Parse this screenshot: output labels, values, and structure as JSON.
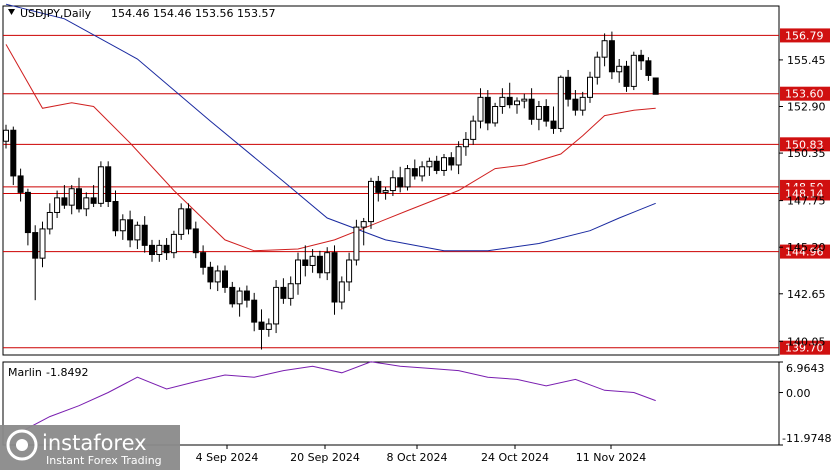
{
  "header": {
    "symbol": "USDJPY,Daily",
    "ohlc": "154.46 154.46 153.56 153.57"
  },
  "indicator": {
    "name": "Marlin",
    "value": "-1.8492",
    "scale_top": "6.9643",
    "scale_mid": "0.00",
    "scale_bottom": "-11.9748"
  },
  "brand": {
    "name": "instaforex",
    "tagline": "Instant Forex Trading"
  },
  "colors": {
    "candle_up": "#ffffff",
    "candle_down": "#000000",
    "level_line": "#cc0000",
    "level_tag": "#d01010",
    "ma_short": "#d02020",
    "ma_long": "#1a2aa0",
    "oscillator": "#7a1fb0",
    "logo_bg": "#8a8a8a"
  },
  "chart_data": {
    "type": "candlestick",
    "ylim": [
      139.3,
      158.4
    ],
    "x_tick_labels": [
      "4 Sep 2024",
      "20 Sep 2024",
      "8 Oct 2024",
      "24 Oct 2024",
      "11 Nov 2024"
    ],
    "y_tick_labels": [
      "155.45",
      "152.90",
      "150.35",
      "147.75",
      "145.20",
      "142.65",
      "140.05"
    ],
    "levels": [
      "156.79",
      "153.60",
      "150.83",
      "148.50",
      "148.14",
      "144.96",
      "139.70"
    ],
    "candles": [
      [
        151.0,
        151.9,
        150.6,
        151.6
      ],
      [
        151.6,
        151.8,
        148.6,
        149.1
      ],
      [
        149.1,
        149.5,
        147.7,
        148.2
      ],
      [
        148.2,
        148.4,
        145.3,
        146.0
      ],
      [
        146.0,
        146.4,
        142.3,
        144.6
      ],
      [
        144.6,
        146.6,
        144.1,
        146.2
      ],
      [
        146.2,
        147.6,
        145.9,
        147.1
      ],
      [
        147.1,
        148.3,
        146.8,
        147.9
      ],
      [
        147.9,
        148.6,
        147.3,
        147.5
      ],
      [
        147.5,
        148.6,
        147.0,
        148.4
      ],
      [
        148.4,
        149.0,
        147.1,
        147.3
      ],
      [
        147.3,
        148.2,
        146.9,
        147.9
      ],
      [
        147.9,
        148.6,
        147.4,
        147.6
      ],
      [
        147.6,
        149.9,
        147.4,
        149.6
      ],
      [
        149.6,
        149.9,
        147.4,
        147.7
      ],
      [
        147.7,
        148.3,
        145.8,
        146.1
      ],
      [
        146.1,
        147.0,
        145.6,
        146.7
      ],
      [
        146.7,
        147.2,
        145.2,
        145.6
      ],
      [
        145.6,
        146.6,
        145.1,
        146.4
      ],
      [
        146.4,
        146.9,
        144.9,
        145.3
      ],
      [
        145.3,
        145.6,
        144.4,
        144.8
      ],
      [
        144.8,
        145.6,
        144.4,
        145.3
      ],
      [
        145.3,
        145.7,
        144.5,
        144.9
      ],
      [
        144.9,
        146.1,
        144.6,
        145.9
      ],
      [
        145.9,
        147.6,
        145.6,
        147.3
      ],
      [
        147.3,
        147.6,
        145.9,
        146.2
      ],
      [
        146.2,
        146.6,
        144.6,
        144.9
      ],
      [
        144.9,
        145.3,
        143.7,
        144.1
      ],
      [
        144.1,
        144.4,
        142.9,
        143.3
      ],
      [
        143.3,
        144.2,
        142.8,
        143.9
      ],
      [
        143.9,
        144.2,
        142.7,
        143.0
      ],
      [
        143.0,
        143.3,
        141.9,
        142.1
      ],
      [
        142.1,
        143.0,
        141.4,
        142.8
      ],
      [
        142.8,
        143.1,
        141.9,
        142.3
      ],
      [
        142.3,
        142.7,
        140.6,
        141.1
      ],
      [
        141.1,
        141.8,
        139.6,
        140.7
      ],
      [
        140.7,
        141.3,
        140.3,
        141.0
      ],
      [
        141.0,
        143.4,
        140.5,
        143.0
      ],
      [
        143.0,
        143.5,
        142.1,
        142.4
      ],
      [
        142.4,
        143.6,
        142.0,
        143.2
      ],
      [
        143.2,
        144.9,
        142.6,
        144.5
      ],
      [
        144.5,
        145.3,
        143.6,
        144.2
      ],
      [
        144.2,
        145.1,
        143.8,
        144.7
      ],
      [
        144.7,
        145.0,
        143.5,
        143.8
      ],
      [
        143.8,
        145.2,
        143.4,
        144.9
      ],
      [
        144.9,
        145.3,
        141.5,
        142.2
      ],
      [
        142.2,
        143.6,
        141.8,
        143.3
      ],
      [
        143.3,
        144.9,
        142.8,
        144.5
      ],
      [
        144.5,
        146.7,
        144.2,
        146.3
      ],
      [
        146.3,
        146.8,
        145.3,
        146.6
      ],
      [
        146.6,
        149.0,
        146.2,
        148.8
      ],
      [
        148.8,
        149.1,
        147.7,
        148.2
      ],
      [
        148.2,
        148.5,
        147.8,
        148.3
      ],
      [
        148.3,
        149.4,
        148.0,
        149.0
      ],
      [
        149.0,
        149.6,
        148.2,
        148.5
      ],
      [
        148.5,
        149.7,
        148.3,
        149.5
      ],
      [
        149.5,
        150.0,
        148.9,
        149.1
      ],
      [
        149.1,
        149.9,
        148.8,
        149.6
      ],
      [
        149.6,
        150.1,
        149.1,
        149.9
      ],
      [
        149.9,
        150.2,
        149.2,
        149.4
      ],
      [
        149.4,
        150.3,
        149.1,
        150.1
      ],
      [
        150.1,
        150.4,
        149.4,
        149.7
      ],
      [
        149.7,
        151.0,
        149.2,
        150.7
      ],
      [
        150.7,
        151.5,
        150.2,
        151.1
      ],
      [
        151.1,
        152.4,
        150.8,
        152.1
      ],
      [
        152.1,
        153.9,
        151.7,
        153.4
      ],
      [
        153.4,
        153.8,
        151.6,
        152.0
      ],
      [
        152.0,
        153.1,
        151.8,
        152.9
      ],
      [
        152.9,
        153.9,
        152.5,
        153.4
      ],
      [
        153.4,
        154.2,
        152.8,
        153.0
      ],
      [
        153.0,
        153.4,
        152.5,
        153.2
      ],
      [
        153.2,
        153.6,
        152.8,
        153.3
      ],
      [
        153.3,
        153.9,
        151.9,
        152.2
      ],
      [
        152.2,
        153.2,
        151.6,
        152.9
      ],
      [
        152.9,
        153.3,
        151.8,
        152.1
      ],
      [
        152.1,
        152.9,
        151.4,
        151.7
      ],
      [
        151.7,
        154.6,
        151.5,
        154.5
      ],
      [
        154.5,
        154.9,
        152.9,
        153.3
      ],
      [
        153.3,
        153.8,
        152.4,
        152.7
      ],
      [
        152.7,
        153.7,
        152.4,
        153.4
      ],
      [
        153.4,
        154.8,
        153.1,
        154.5
      ],
      [
        154.5,
        155.9,
        154.1,
        155.6
      ],
      [
        155.6,
        156.9,
        155.1,
        156.5
      ],
      [
        156.5,
        157.0,
        154.4,
        154.8
      ],
      [
        154.8,
        155.5,
        154.2,
        155.1
      ],
      [
        155.1,
        155.4,
        153.7,
        154.0
      ],
      [
        154.0,
        155.9,
        153.8,
        155.7
      ],
      [
        155.7,
        156.0,
        154.9,
        155.4
      ],
      [
        155.4,
        155.6,
        154.3,
        154.6
      ],
      [
        154.46,
        154.46,
        153.56,
        153.57
      ]
    ],
    "ma_short": [
      [
        0,
        156.3
      ],
      [
        5,
        152.8
      ],
      [
        9,
        153.1
      ],
      [
        12,
        152.9
      ],
      [
        17,
        150.9
      ],
      [
        23,
        148.3
      ],
      [
        30,
        145.6
      ],
      [
        34,
        145.0
      ],
      [
        40,
        145.1
      ],
      [
        45,
        145.6
      ],
      [
        50,
        146.4
      ],
      [
        55,
        147.2
      ],
      [
        62,
        148.3
      ],
      [
        67,
        149.5
      ],
      [
        71,
        149.7
      ],
      [
        76,
        150.3
      ],
      [
        79,
        151.3
      ],
      [
        82,
        152.4
      ],
      [
        86,
        152.7
      ],
      [
        89,
        152.8
      ]
    ],
    "ma_long": [
      [
        0,
        158.5
      ],
      [
        8,
        157.7
      ],
      [
        18,
        155.5
      ],
      [
        28,
        152.1
      ],
      [
        38,
        148.8
      ],
      [
        44,
        146.8
      ],
      [
        52,
        145.6
      ],
      [
        60,
        145.0
      ],
      [
        66,
        145.0
      ],
      [
        73,
        145.4
      ],
      [
        80,
        146.1
      ],
      [
        84,
        146.8
      ],
      [
        89,
        147.6
      ]
    ],
    "oscillator": [
      [
        2,
        -9.0
      ],
      [
        6,
        -5.5
      ],
      [
        10,
        -3.0
      ],
      [
        14,
        0.0
      ],
      [
        18,
        3.5
      ],
      [
        22,
        0.8
      ],
      [
        26,
        2.5
      ],
      [
        30,
        4.0
      ],
      [
        34,
        3.5
      ],
      [
        38,
        5.0
      ],
      [
        42,
        6.0
      ],
      [
        46,
        4.5
      ],
      [
        50,
        7.0
      ],
      [
        54,
        6.0
      ],
      [
        58,
        5.5
      ],
      [
        62,
        5.0
      ],
      [
        66,
        3.5
      ],
      [
        70,
        3.0
      ],
      [
        74,
        1.5
      ],
      [
        78,
        3.0
      ],
      [
        82,
        0.5
      ],
      [
        86,
        0.0
      ],
      [
        89,
        -1.85
      ]
    ]
  }
}
